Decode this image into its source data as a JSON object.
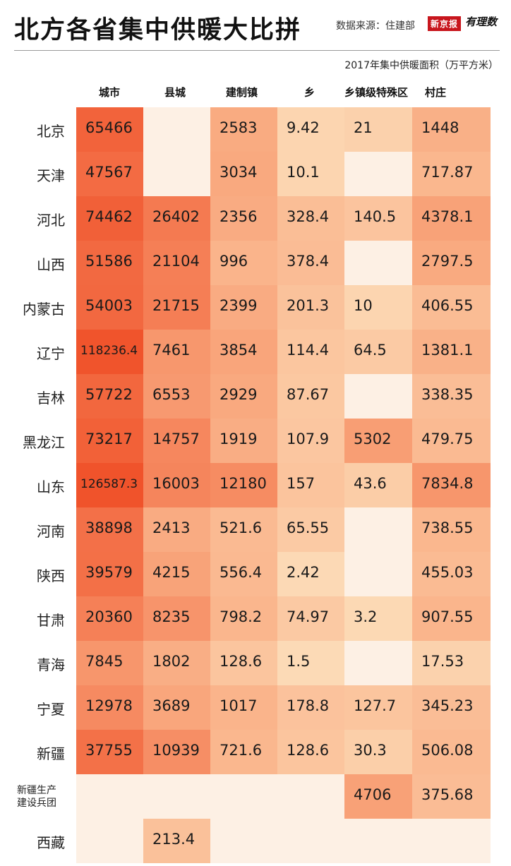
{
  "header": {
    "title": "北方各省集中供暖大比拼",
    "source": "数据来源：住建部",
    "brand_primary": "新京报",
    "brand_secondary": "有理数",
    "subtitle": "2017年集中供暖面积（万平方米）"
  },
  "colors": {
    "empty": "#fdf0e4",
    "low": "#fcdcb8",
    "mid": "#f9a87e",
    "high": "#f0522a"
  },
  "chart_data": {
    "type": "heatmap",
    "title": "北方各省集中供暖大比拼",
    "subtitle": "2017年集中供暖面积（万平方米）",
    "columns": [
      "城市",
      "县城",
      "建制镇",
      "乡",
      "乡镇级特殊区",
      "村庄"
    ],
    "rows": [
      {
        "label": "北京",
        "values": [
          "65466",
          "",
          "2583",
          "9.42",
          "21",
          "1448"
        ]
      },
      {
        "label": "天津",
        "values": [
          "47567",
          "",
          "3034",
          "10.1",
          "",
          "717.87"
        ]
      },
      {
        "label": "河北",
        "values": [
          "74462",
          "26402",
          "2356",
          "328.4",
          "140.5",
          "4378.1"
        ]
      },
      {
        "label": "山西",
        "values": [
          "51586",
          "21104",
          "996",
          "378.4",
          "",
          "2797.5"
        ]
      },
      {
        "label": "内蒙古",
        "values": [
          "54003",
          "21715",
          "2399",
          "201.3",
          "10",
          "406.55"
        ]
      },
      {
        "label": "辽宁",
        "values": [
          "118236.4",
          "7461",
          "3854",
          "114.4",
          "64.5",
          "1381.1"
        ]
      },
      {
        "label": "吉林",
        "values": [
          "57722",
          "6553",
          "2929",
          "87.67",
          "",
          "338.35"
        ]
      },
      {
        "label": "黑龙江",
        "values": [
          "73217",
          "14757",
          "1919",
          "107.9",
          "5302",
          "479.75"
        ]
      },
      {
        "label": "山东",
        "values": [
          "126587.3",
          "16003",
          "12180",
          "157",
          "43.6",
          "7834.8"
        ]
      },
      {
        "label": "河南",
        "values": [
          "38898",
          "2413",
          "521.6",
          "65.55",
          "",
          "738.55"
        ]
      },
      {
        "label": "陕西",
        "values": [
          "39579",
          "4215",
          "556.4",
          "2.42",
          "",
          "455.03"
        ]
      },
      {
        "label": "甘肃",
        "values": [
          "20360",
          "8235",
          "798.2",
          "74.97",
          "3.2",
          "907.55"
        ]
      },
      {
        "label": "青海",
        "values": [
          "7845",
          "1802",
          "128.6",
          "1.5",
          "",
          "17.53"
        ]
      },
      {
        "label": "宁夏",
        "values": [
          "12978",
          "3689",
          "1017",
          "178.8",
          "127.7",
          "345.23"
        ]
      },
      {
        "label": "新疆",
        "values": [
          "37755",
          "10939",
          "721.6",
          "128.6",
          "30.3",
          "506.08"
        ]
      },
      {
        "label": "新疆生产建设兵团",
        "values": [
          "",
          "",
          "",
          "",
          "4706",
          "375.68"
        ]
      },
      {
        "label": "西藏",
        "values": [
          "",
          "213.4",
          "",
          "",
          "",
          ""
        ]
      }
    ]
  }
}
